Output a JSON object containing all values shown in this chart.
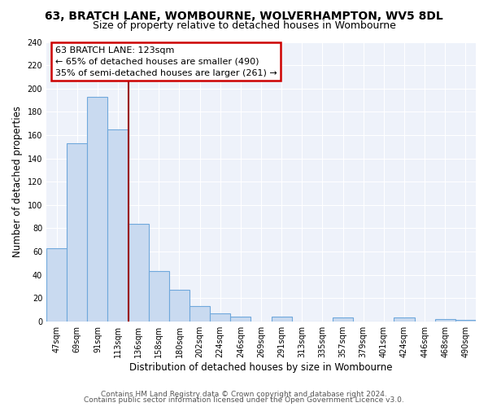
{
  "title": "63, BRATCH LANE, WOMBOURNE, WOLVERHAMPTON, WV5 8DL",
  "subtitle": "Size of property relative to detached houses in Wombourne",
  "xlabel": "Distribution of detached houses by size in Wombourne",
  "ylabel": "Number of detached properties",
  "bar_labels": [
    "47sqm",
    "69sqm",
    "91sqm",
    "113sqm",
    "136sqm",
    "158sqm",
    "180sqm",
    "202sqm",
    "224sqm",
    "246sqm",
    "269sqm",
    "291sqm",
    "313sqm",
    "335sqm",
    "357sqm",
    "379sqm",
    "401sqm",
    "424sqm",
    "446sqm",
    "468sqm",
    "490sqm"
  ],
  "bar_values": [
    63,
    153,
    193,
    165,
    84,
    43,
    27,
    13,
    7,
    4,
    0,
    4,
    0,
    0,
    3,
    0,
    0,
    3,
    0,
    2,
    1
  ],
  "bar_color": "#c9daf0",
  "bar_edge_color": "#6fa8dc",
  "vline_color": "#990000",
  "annotation_title": "63 BRATCH LANE: 123sqm",
  "annotation_line1": "← 65% of detached houses are smaller (490)",
  "annotation_line2": "35% of semi-detached houses are larger (261) →",
  "annotation_box_edge": "#cc0000",
  "footer1": "Contains HM Land Registry data © Crown copyright and database right 2024.",
  "footer2": "Contains public sector information licensed under the Open Government Licence v3.0.",
  "ylim": [
    0,
    240
  ],
  "yticks": [
    0,
    20,
    40,
    60,
    80,
    100,
    120,
    140,
    160,
    180,
    200,
    220,
    240
  ],
  "bg_color": "#eef2fa",
  "fig_bg_color": "#ffffff",
  "title_fontsize": 10,
  "subtitle_fontsize": 9,
  "axis_label_fontsize": 8.5,
  "tick_fontsize": 7,
  "annotation_fontsize": 8,
  "footer_fontsize": 6.5,
  "vline_xindex": 3.5
}
